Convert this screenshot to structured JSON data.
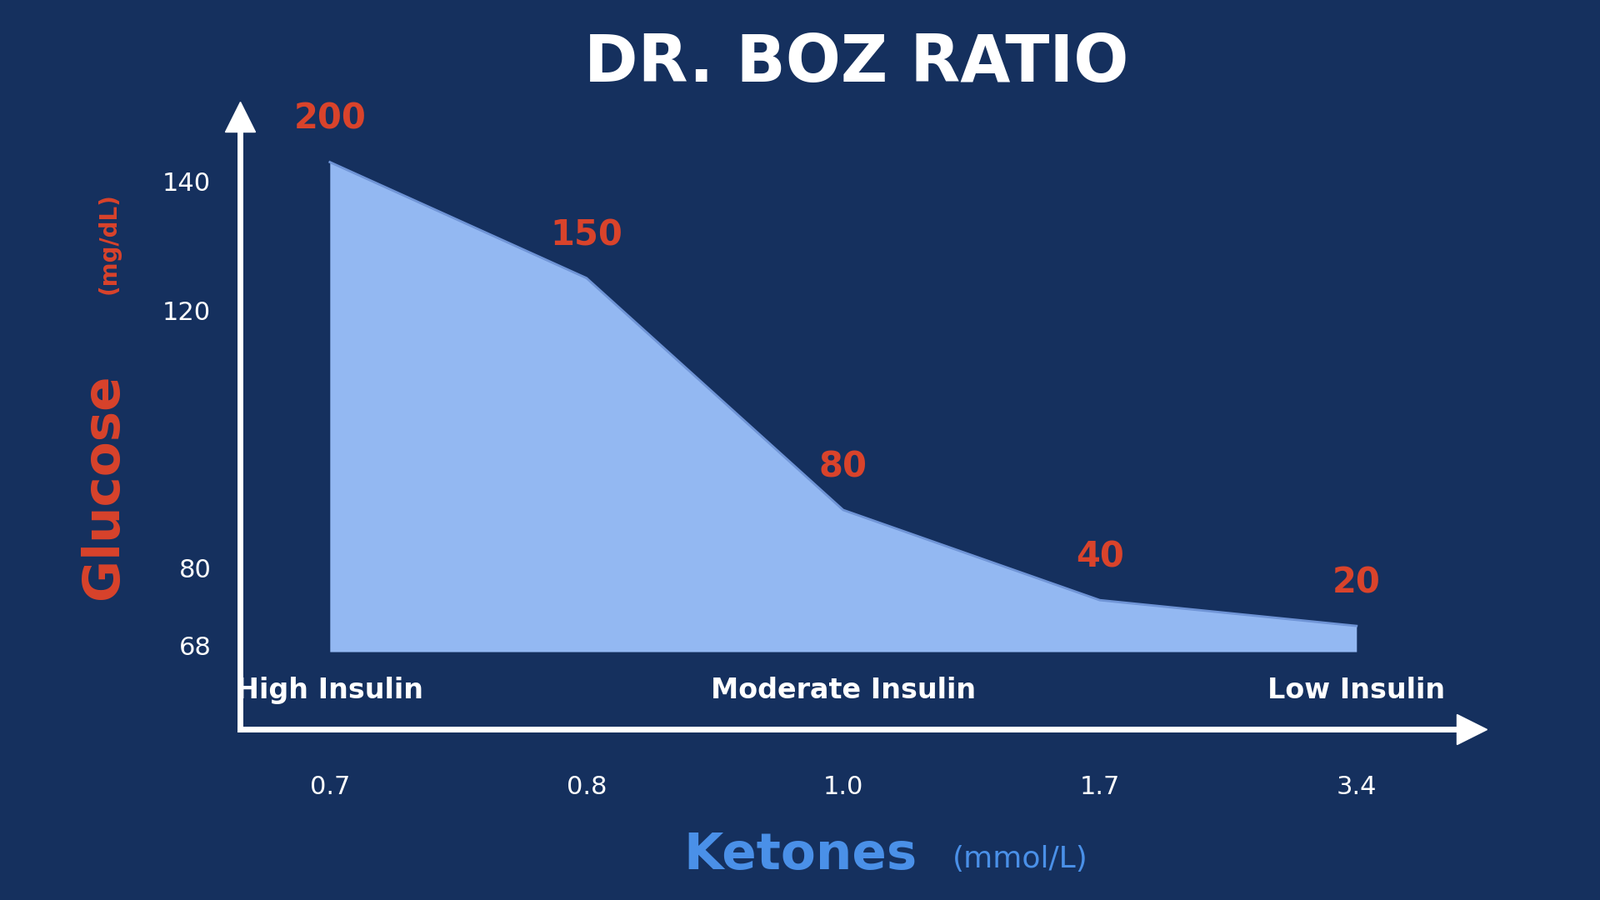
{
  "chart_data": {
    "type": "area",
    "title": "DR. BOZ RATIO",
    "xlabel": "Ketones",
    "xlabel_unit": "(mmol/L)",
    "ylabel": "Glucose",
    "ylabel_unit": "(mg/dL)",
    "categories": [
      "0.7",
      "0.8",
      "1.0",
      "1.7",
      "3.4"
    ],
    "values": [
      143,
      125,
      89,
      75,
      71
    ],
    "baseline": 67,
    "ratios": [
      200,
      150,
      80,
      40,
      20
    ],
    "ylim": [
      55,
      150
    ],
    "yticks": [
      68,
      80,
      120,
      140
    ],
    "color": "#93b8f2",
    "grid": false,
    "annotations": [
      {
        "text": "High Insulin",
        "category": 0
      },
      {
        "text": "Moderate Insulin",
        "category": 2
      },
      {
        "text": "Low Insulin",
        "category": 4
      }
    ]
  }
}
